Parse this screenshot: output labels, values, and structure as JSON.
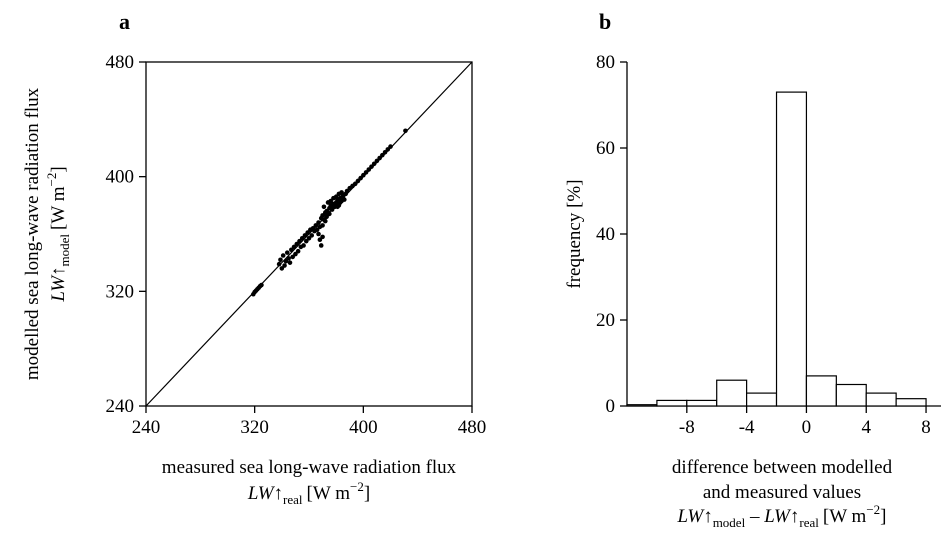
{
  "chart_data": [
    {
      "type": "scatter",
      "panel_label": "a",
      "xlabel": "measured sea long-wave radiation flux",
      "xlabel_formula": {
        "symbol": "LW",
        "arrow": "↑",
        "subscript": "real",
        "unit_prefix": "[W m",
        "unit_exp": "−2",
        "unit_suffix": "]"
      },
      "ylabel": "modelled sea long-wave radiation flux",
      "ylabel_formula": {
        "symbol": "LW",
        "arrow": "↑",
        "subscript": "model",
        "unit_prefix": "[W m",
        "unit_exp": "−2",
        "unit_suffix": "]"
      },
      "xlim": [
        240,
        480
      ],
      "ylim": [
        240,
        480
      ],
      "xticks": [
        "240",
        "320",
        "400",
        "480"
      ],
      "yticks": [
        "240",
        "320",
        "400",
        "480"
      ],
      "reference_line": "y = x",
      "grid": false,
      "points": [
        [
          319,
          318
        ],
        [
          320,
          319.5
        ],
        [
          321,
          320.5
        ],
        [
          322,
          321.5
        ],
        [
          323,
          322.5
        ],
        [
          324,
          323.6
        ],
        [
          325,
          324.4
        ],
        [
          338,
          339
        ],
        [
          339,
          342
        ],
        [
          340,
          336
        ],
        [
          341,
          345
        ],
        [
          342,
          338
        ],
        [
          343,
          341
        ],
        [
          344,
          347
        ],
        [
          345,
          343
        ],
        [
          346,
          340
        ],
        [
          347,
          349
        ],
        [
          348,
          344
        ],
        [
          349,
          351
        ],
        [
          350,
          346
        ],
        [
          351,
          353
        ],
        [
          352,
          348
        ],
        [
          353,
          355
        ],
        [
          354,
          351
        ],
        [
          355,
          357
        ],
        [
          356,
          352
        ],
        [
          357,
          359
        ],
        [
          358,
          355
        ],
        [
          359,
          361
        ],
        [
          360,
          357
        ],
        [
          361,
          363
        ],
        [
          362,
          359
        ],
        [
          363,
          364
        ],
        [
          364,
          362
        ],
        [
          365,
          366
        ],
        [
          366,
          363
        ],
        [
          367,
          368
        ],
        [
          368,
          365
        ],
        [
          369,
          371
        ],
        [
          369,
          352
        ],
        [
          368,
          356
        ],
        [
          367,
          360
        ],
        [
          370,
          358
        ],
        [
          370,
          366
        ],
        [
          371,
          370
        ],
        [
          372,
          374
        ],
        [
          372,
          375
        ],
        [
          373,
          376
        ],
        [
          374,
          375
        ],
        [
          375,
          378
        ],
        [
          376,
          380
        ],
        [
          377,
          377
        ],
        [
          378,
          381
        ],
        [
          379,
          379
        ],
        [
          380,
          382
        ],
        [
          381,
          384
        ],
        [
          382,
          380
        ],
        [
          383,
          385
        ],
        [
          384,
          383
        ],
        [
          385,
          387
        ],
        [
          386,
          384
        ],
        [
          387,
          388
        ],
        [
          374,
          382
        ],
        [
          376,
          383
        ],
        [
          378,
          385
        ],
        [
          380,
          386
        ],
        [
          382,
          388
        ],
        [
          384,
          389
        ],
        [
          371,
          379
        ],
        [
          373,
          372
        ],
        [
          375,
          374
        ],
        [
          377,
          378
        ],
        [
          379,
          381
        ],
        [
          381,
          379
        ],
        [
          383,
          382
        ],
        [
          385,
          385
        ],
        [
          372,
          369
        ],
        [
          370,
          373
        ],
        [
          388,
          390
        ],
        [
          390,
          392
        ],
        [
          392,
          393.5
        ],
        [
          394,
          395
        ],
        [
          396,
          397
        ],
        [
          398,
          399
        ],
        [
          400,
          401
        ],
        [
          402,
          403
        ],
        [
          404,
          405
        ],
        [
          406,
          407
        ],
        [
          408,
          409
        ],
        [
          410,
          411
        ],
        [
          412,
          413
        ],
        [
          414,
          415
        ],
        [
          416,
          417
        ],
        [
          418,
          419
        ],
        [
          420,
          421
        ],
        [
          431,
          432
        ]
      ]
    },
    {
      "type": "bar",
      "panel_label": "b",
      "xlabel_line1": "difference between modelled",
      "xlabel_line2": "and measured values",
      "xlabel_formula": {
        "symbol": "LW",
        "arrow": "↑",
        "sub1": "model",
        "minus": " – ",
        "sub2": "real",
        "unit_prefix": "[W m",
        "unit_exp": "−2",
        "unit_suffix": "]"
      },
      "ylabel": "frequency  [%]",
      "xlim": [
        -12,
        9
      ],
      "ylim": [
        0,
        80
      ],
      "xticks": [
        -8,
        -4,
        0,
        4,
        8
      ],
      "xtick_labels": [
        "-8",
        "-4",
        "0",
        "4",
        "8"
      ],
      "yticks": [
        0,
        20,
        40,
        60,
        80
      ],
      "ytick_labels": [
        "0",
        "20",
        "40",
        "60",
        "80"
      ],
      "grid": false,
      "bins": [
        {
          "from": -12,
          "to": -10,
          "value": 0.3
        },
        {
          "from": -10,
          "to": -8,
          "value": 1.3
        },
        {
          "from": -8,
          "to": -6,
          "value": 1.3
        },
        {
          "from": -6,
          "to": -4,
          "value": 6
        },
        {
          "from": -4,
          "to": -2,
          "value": 3
        },
        {
          "from": -2,
          "to": 0,
          "value": 73
        },
        {
          "from": 0,
          "to": 2,
          "value": 7
        },
        {
          "from": 2,
          "to": 4,
          "value": 5
        },
        {
          "from": 4,
          "to": 6,
          "value": 3
        },
        {
          "from": 6,
          "to": 8,
          "value": 1.7
        }
      ]
    }
  ]
}
